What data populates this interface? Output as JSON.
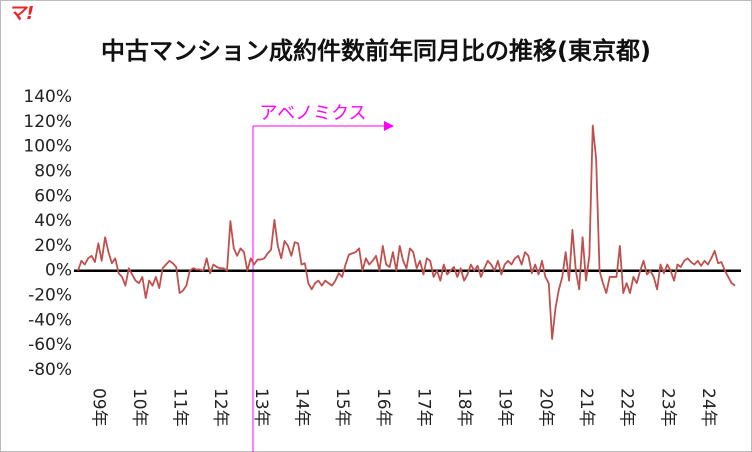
{
  "chart_data": {
    "type": "line",
    "logo": "マ!",
    "title": "中古マンション成約件数前年同月比の推移(東京都)",
    "annotation": "アベノミクス",
    "color": "#c0504d",
    "ylim": [
      -80,
      140
    ],
    "yticks": [
      {
        "value": -80,
        "label": "-80%"
      },
      {
        "value": -60,
        "label": "-60%"
      },
      {
        "value": -40,
        "label": "-40%"
      },
      {
        "value": -20,
        "label": "-20%"
      },
      {
        "value": 0,
        "label": "0%"
      },
      {
        "value": 20,
        "label": "20%"
      },
      {
        "value": 40,
        "label": "40%"
      },
      {
        "value": 60,
        "label": "60%"
      },
      {
        "value": 80,
        "label": "80%"
      },
      {
        "value": 100,
        "label": "100%"
      },
      {
        "value": 120,
        "label": "120%"
      },
      {
        "value": 140,
        "label": "140%"
      }
    ],
    "categories": [
      null,
      null,
      null,
      null,
      null,
      null,
      "09年",
      null,
      null,
      null,
      null,
      null,
      null,
      null,
      null,
      null,
      null,
      null,
      "10年",
      null,
      null,
      null,
      null,
      null,
      null,
      null,
      null,
      null,
      null,
      null,
      "11年",
      null,
      null,
      null,
      null,
      null,
      null,
      null,
      null,
      null,
      null,
      null,
      "12年",
      null,
      null,
      null,
      null,
      null,
      null,
      null,
      null,
      null,
      null,
      null,
      "13年",
      null,
      null,
      null,
      null,
      null,
      null,
      null,
      null,
      null,
      null,
      null,
      "14年",
      null,
      null,
      null,
      null,
      null,
      null,
      null,
      null,
      null,
      null,
      null,
      "15年",
      null,
      null,
      null,
      null,
      null,
      null,
      null,
      null,
      null,
      null,
      null,
      "16年",
      null,
      null,
      null,
      null,
      null,
      null,
      null,
      null,
      null,
      null,
      null,
      "17年",
      null,
      null,
      null,
      null,
      null,
      null,
      null,
      null,
      null,
      null,
      null,
      "18年",
      null,
      null,
      null,
      null,
      null,
      null,
      null,
      null,
      null,
      null,
      null,
      "19年",
      null,
      null,
      null,
      null,
      null,
      null,
      null,
      null,
      null,
      null,
      null,
      "20年",
      null,
      null,
      null,
      null,
      null,
      null,
      null,
      null,
      null,
      null,
      null,
      "21年",
      null,
      null,
      null,
      null,
      null,
      null,
      null,
      null,
      null,
      null,
      null,
      "22年",
      null,
      null,
      null,
      null,
      null,
      null,
      null,
      null,
      null,
      null,
      null,
      "23年",
      null,
      null,
      null,
      null,
      null,
      null,
      null,
      null,
      null,
      null,
      null,
      "24年",
      null,
      null,
      null,
      null,
      null,
      null,
      null,
      null
    ],
    "values": [
      0,
      8,
      5,
      10,
      12,
      7,
      22,
      8,
      27,
      15,
      6,
      10,
      -2,
      -5,
      -12,
      2,
      -3,
      -8,
      -10,
      -5,
      -22,
      -8,
      -12,
      -5,
      -14,
      2,
      5,
      8,
      6,
      3,
      -18,
      -16,
      -12,
      0,
      2,
      1,
      1,
      0,
      10,
      -2,
      5,
      3,
      2,
      2,
      0,
      40,
      18,
      12,
      18,
      15,
      0,
      10,
      5,
      9,
      9,
      10,
      14,
      17,
      41,
      20,
      10,
      24,
      20,
      12,
      23,
      22,
      5,
      6,
      -10,
      -15,
      -10,
      -8,
      -12,
      -8,
      -10,
      -12,
      -8,
      -2,
      -5,
      5,
      13,
      14,
      15,
      18,
      0,
      10,
      5,
      8,
      12,
      0,
      20,
      5,
      3,
      15,
      0,
      20,
      8,
      2,
      18,
      15,
      2,
      8,
      -3,
      10,
      8,
      -5,
      0,
      -8,
      5,
      -3,
      0,
      3,
      -5,
      2,
      -8,
      -3,
      5,
      0,
      4,
      -5,
      2,
      8,
      5,
      0,
      8,
      -3,
      5,
      8,
      5,
      10,
      12,
      5,
      15,
      12,
      -2,
      5,
      -3,
      8,
      -5,
      -10,
      -55,
      -30,
      -15,
      -5,
      15,
      -8,
      33,
      0,
      -15,
      27,
      -8,
      12,
      117,
      90,
      0,
      -10,
      -18,
      -5,
      -5,
      -5,
      20,
      -18,
      -10,
      -18,
      -5,
      -10,
      0,
      8,
      -3,
      0,
      -5,
      -15,
      5,
      -2,
      5,
      0,
      -8,
      5,
      3,
      8,
      10,
      7,
      5,
      8,
      4,
      8,
      5,
      10,
      16,
      6,
      7,
      0,
      -5,
      -10,
      -12
    ]
  }
}
